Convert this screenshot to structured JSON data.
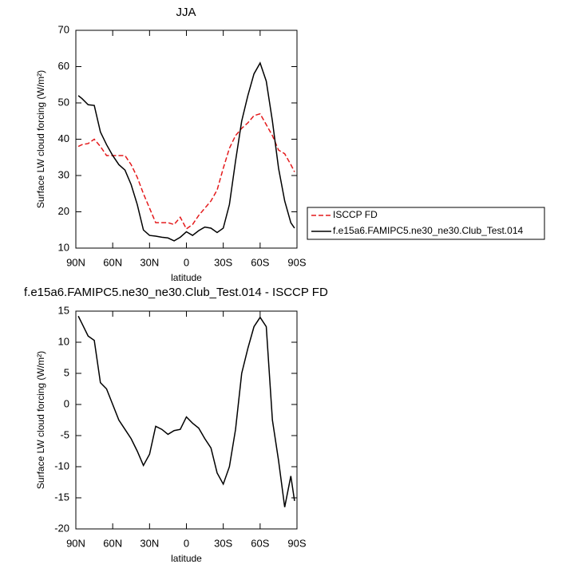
{
  "chart_data": [
    {
      "type": "line",
      "title": "JJA",
      "xlabel": "latitude",
      "ylabel": "Surface LW cloud forcing (W/m²)",
      "x": [
        88,
        85,
        80,
        75,
        70,
        65,
        60,
        55,
        50,
        45,
        40,
        35,
        30,
        25,
        20,
        15,
        10,
        5,
        0,
        -5,
        -10,
        -15,
        -20,
        -25,
        -30,
        -35,
        -40,
        -45,
        -50,
        -55,
        -60,
        -65,
        -70,
        -75,
        -80,
        -85,
        -88
      ],
      "series": [
        {
          "name": "ISCCP FD",
          "color": "#e41a1c",
          "linestyle": "dashed",
          "values": [
            38,
            38.5,
            38.8,
            40,
            38,
            35.5,
            35.5,
            35.5,
            35.5,
            33,
            29.5,
            25,
            21,
            17,
            17,
            17,
            16.5,
            18.5,
            15.3,
            16.5,
            19,
            21,
            23,
            26,
            32,
            37.5,
            41,
            43,
            44.5,
            46.5,
            47,
            44,
            41,
            37,
            36,
            33,
            31
          ]
        },
        {
          "name": "f.e15a6.FAMIPC5.ne30_ne30.Club_Test.014",
          "color": "#000000",
          "linestyle": "solid",
          "values": [
            52,
            51.2,
            49.5,
            49.3,
            42,
            38.5,
            35.5,
            33,
            31.5,
            27.5,
            22,
            15,
            13.5,
            13.3,
            13,
            12.8,
            12,
            13,
            14.5,
            13.5,
            14.8,
            15.8,
            15.5,
            14.3,
            15.5,
            22,
            34,
            45,
            52,
            58,
            61,
            56,
            45,
            32,
            23,
            17,
            15.5
          ]
        }
      ],
      "xlim": [
        90,
        -90
      ],
      "xticks": [
        {
          "value": 90,
          "label": "90N"
        },
        {
          "value": 60,
          "label": "60N"
        },
        {
          "value": 30,
          "label": "30N"
        },
        0,
        {
          "value": -30,
          "label": "30S"
        },
        {
          "value": -60,
          "label": "60S"
        },
        {
          "value": -90,
          "label": "90S"
        }
      ],
      "ylim": [
        10,
        70
      ],
      "yticks": [
        10,
        20,
        30,
        40,
        50,
        60,
        70
      ],
      "legend": "right"
    },
    {
      "type": "line",
      "title": "f.e15a6.FAMIPC5.ne30_ne30.Club_Test.014 - ISCCP FD",
      "xlabel": "latitude",
      "ylabel": "Surface LW cloud forcing (W/m²)",
      "x": [
        88,
        85,
        80,
        75,
        70,
        65,
        60,
        55,
        50,
        45,
        40,
        35,
        30,
        25,
        20,
        15,
        10,
        5,
        0,
        -5,
        -10,
        -15,
        -20,
        -25,
        -30,
        -35,
        -40,
        -45,
        -50,
        -55,
        -60,
        -65,
        -70,
        -75,
        -80,
        -85,
        -88
      ],
      "series": [
        {
          "color": "#000000",
          "linestyle": "solid",
          "values": [
            14.2,
            13,
            11,
            10.3,
            3.5,
            2.5,
            0,
            -2.5,
            -4,
            -5.5,
            -7.5,
            -9.8,
            -8,
            -3.5,
            -4,
            -4.8,
            -4.2,
            -4,
            -2,
            -3,
            -3.8,
            -5.5,
            -7,
            -11,
            -12.8,
            -10,
            -4,
            5,
            9,
            12.5,
            14,
            12.5,
            -2.5,
            -9,
            -16.5,
            -11.5,
            -15.5
          ]
        }
      ],
      "xlim": [
        90,
        -90
      ],
      "xticks": [
        {
          "value": 90,
          "label": "90N"
        },
        {
          "value": 60,
          "label": "60N"
        },
        {
          "value": 30,
          "label": "30N"
        },
        0,
        {
          "value": -30,
          "label": "30S"
        },
        {
          "value": -60,
          "label": "60S"
        },
        {
          "value": -90,
          "label": "90S"
        }
      ],
      "ylim": [
        -20,
        15
      ],
      "yticks": [
        -20,
        -15,
        -10,
        -5,
        0,
        5,
        10,
        15
      ]
    }
  ]
}
